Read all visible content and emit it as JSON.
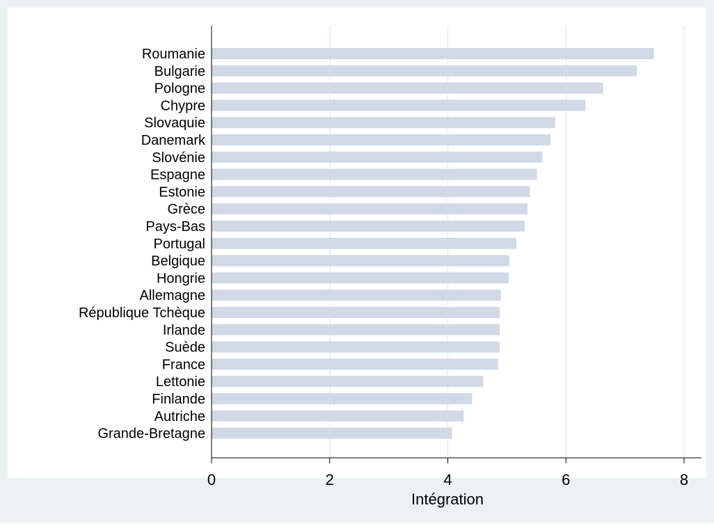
{
  "chart_data": {
    "type": "bar",
    "orientation": "horizontal",
    "categories": [
      "Roumanie",
      "Bulgarie",
      "Pologne",
      "Chypre",
      "Slovaquie",
      "Danemark",
      "Slovénie",
      "Espagne",
      "Estonie",
      "Grèce",
      "Pays-Bas",
      "Portugal",
      "Belgique",
      "Hongrie",
      "Allemagne",
      "République Tchèque",
      "Irlande",
      "Suède",
      "France",
      "Lettonie",
      "Finlande",
      "Autriche",
      "Grande-Bretagne"
    ],
    "values": [
      7.49,
      7.2,
      6.63,
      6.33,
      5.82,
      5.74,
      5.6,
      5.51,
      5.39,
      5.35,
      5.3,
      5.16,
      5.04,
      5.03,
      4.9,
      4.88,
      4.88,
      4.88,
      4.85,
      4.6,
      4.41,
      4.27,
      4.07
    ],
    "xlabel": "Intégration",
    "ylabel": "",
    "xlim": [
      0,
      8
    ],
    "xticks": [
      "0",
      "2",
      "4",
      "6",
      "8"
    ],
    "grid": "vertical",
    "legend": "none",
    "colors": {
      "background": "#eaf2f3",
      "plot_background": "#ffffff",
      "bar": "#d2d9e6",
      "grid": "#eaf2f3",
      "axis": "#000000",
      "text": "#000000"
    }
  }
}
